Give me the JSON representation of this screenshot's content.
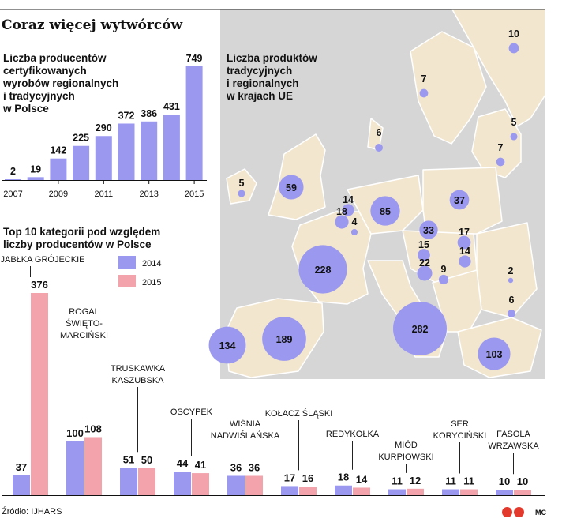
{
  "title": "Coraz więcej wytwórców",
  "source": "Źródło: IJHARS",
  "credit": "MC",
  "colors": {
    "y2014": "#9b98f0",
    "y2015": "#f2a3ac",
    "map_land": "#f2e6cf",
    "map_bg": "#d6d6d6",
    "map_border": "#ffffff",
    "bubble": "#9b98f0"
  },
  "chart_data": [
    {
      "type": "bar",
      "title_lines": [
        "Liczba producentów",
        "certyfikowanych",
        "wyrobów regionalnych",
        "i tradycyjnych",
        "w Polsce"
      ],
      "categories": [
        "2007",
        "2008",
        "2009",
        "2010",
        "2011",
        "2012",
        "2013",
        "2014",
        "2015"
      ],
      "x_tick_labels": [
        "2007",
        "2009",
        "2011",
        "2013",
        "2015"
      ],
      "values": [
        2,
        19,
        142,
        225,
        290,
        372,
        386,
        431,
        749
      ],
      "color": "#9b98f0"
    },
    {
      "type": "bar",
      "title_lines": [
        "Top 10 kategorii pod względem",
        "liczby producentów w Polsce"
      ],
      "legend": [
        "2014",
        "2015"
      ],
      "categories": [
        {
          "lines": [
            "JABŁKA GRÓJECKIE"
          ],
          "v2014": 37,
          "v2015": 376
        },
        {
          "lines": [
            "ROGAL",
            "ŚWIĘTO-",
            "MARCIŃSKI"
          ],
          "v2014": 100,
          "v2015": 108
        },
        {
          "lines": [
            "TRUSKAWKA",
            "KASZUBSKA"
          ],
          "v2014": 51,
          "v2015": 50
        },
        {
          "lines": [
            "OSCYPEK"
          ],
          "v2014": 44,
          "v2015": 41
        },
        {
          "lines": [
            "WIŚNIA",
            "NADWIŚLAŃSKA"
          ],
          "v2014": 36,
          "v2015": 36
        },
        {
          "lines": [
            "KOŁACZ ŚLĄSKI"
          ],
          "v2014": 17,
          "v2015": 16
        },
        {
          "lines": [
            "REDYKOŁKA"
          ],
          "v2014": 18,
          "v2015": 14
        },
        {
          "lines": [
            "MIÓD",
            "KURPIOWSKI"
          ],
          "v2014": 11,
          "v2015": 12
        },
        {
          "lines": [
            "SER",
            "KORYCIŃSKI"
          ],
          "v2014": 11,
          "v2015": 11
        },
        {
          "lines": [
            "FASOLA",
            "WRZAWSKA"
          ],
          "v2014": 10,
          "v2015": 10
        }
      ]
    },
    {
      "type": "bubble-map",
      "title_lines": [
        "Liczba produktów",
        "tradycyjnych",
        "i regionalnych",
        "w krajach UE"
      ],
      "values": [
        10,
        7,
        5,
        7,
        6,
        5,
        59,
        14,
        18,
        4,
        85,
        37,
        33,
        17,
        15,
        14,
        228,
        22,
        9,
        2,
        6,
        189,
        134,
        282,
        103
      ]
    }
  ]
}
